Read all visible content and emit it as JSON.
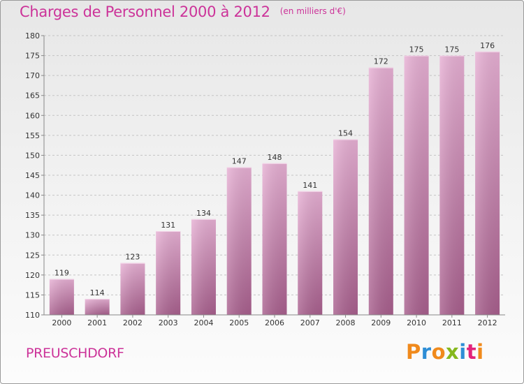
{
  "header": {
    "title": "Charges de Personnel 2000 à 2012",
    "unit": "(en milliers d'€)"
  },
  "footer": {
    "place": "PREUSCHDORF",
    "logo_text": "Proxiti"
  },
  "colors": {
    "title": "#cc3399",
    "bar_top": "#e7b0d4",
    "bar_bottom": "#a85f8d",
    "logo_letters": [
      "#f08a1c",
      "#2e8ed6",
      "#f08a1c",
      "#86b81d",
      "#2e8ed6",
      "#e2237c",
      "#f08a1c"
    ]
  },
  "chart_data": {
    "type": "bar",
    "categories": [
      "2000",
      "2001",
      "2002",
      "2003",
      "2004",
      "2005",
      "2006",
      "2007",
      "2008",
      "2009",
      "2010",
      "2011",
      "2012"
    ],
    "values": [
      119,
      114,
      123,
      131,
      134,
      147,
      148,
      141,
      154,
      172,
      175,
      175,
      176
    ],
    "ylim": [
      110,
      180
    ],
    "yticks": [
      110,
      115,
      120,
      125,
      130,
      135,
      140,
      145,
      150,
      155,
      160,
      165,
      170,
      175,
      180
    ],
    "grid": "horizontal dashed",
    "data_labels": true
  }
}
